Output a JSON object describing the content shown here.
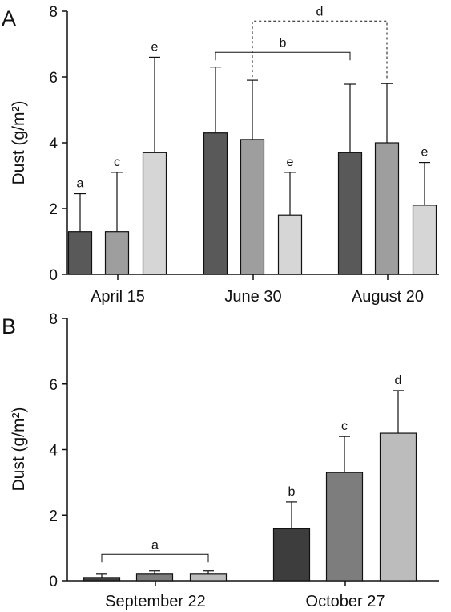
{
  "chart_data": [
    {
      "panel": "A",
      "type": "bar",
      "ylabel": "Dust (g/m²)",
      "ylim": [
        0,
        8
      ],
      "yticks": [
        0,
        2,
        4,
        6,
        8
      ],
      "categories": [
        "April 15",
        "June 30",
        "August 20"
      ],
      "colors": [
        "#595959",
        "#9e9e9e",
        "#d6d6d6"
      ],
      "values": [
        [
          1.3,
          1.3,
          3.7
        ],
        [
          4.3,
          4.1,
          1.8
        ],
        [
          3.7,
          4.0,
          2.1
        ]
      ],
      "errors": [
        [
          2.45,
          3.1,
          6.6
        ],
        [
          6.3,
          5.9,
          3.1
        ],
        [
          5.78,
          5.8,
          3.4
        ]
      ],
      "bar_labels": [
        [
          "a",
          "c",
          "e"
        ],
        [
          "",
          "",
          "e"
        ],
        [
          "",
          "",
          "e"
        ]
      ],
      "brackets": [
        {
          "label": "b",
          "from": [
            1,
            0
          ],
          "to": [
            2,
            0
          ],
          "level": 6.75,
          "style": "solid"
        },
        {
          "label": "d",
          "from": [
            1,
            1
          ],
          "to": [
            2,
            1
          ],
          "level": 7.7,
          "style": "dashed"
        }
      ]
    },
    {
      "panel": "B",
      "type": "bar",
      "ylabel": "Dust (g/m²)",
      "ylim": [
        0,
        8
      ],
      "yticks": [
        0,
        2,
        4,
        6,
        8
      ],
      "categories": [
        "September 22",
        "October 27"
      ],
      "colors": [
        "#3d3d3d",
        "#7d7d7d",
        "#bcbcbc"
      ],
      "values": [
        [
          0.1,
          0.2,
          0.2
        ],
        [
          1.6,
          3.3,
          4.5
        ]
      ],
      "errors": [
        [
          0.2,
          0.3,
          0.3
        ],
        [
          2.4,
          4.4,
          5.8
        ]
      ],
      "bar_labels": [
        [
          "",
          "",
          ""
        ],
        [
          "b",
          "c",
          "d"
        ]
      ],
      "brackets": [
        {
          "label": "a",
          "from": [
            0,
            0
          ],
          "to": [
            0,
            2
          ],
          "level": 0.8,
          "style": "solid"
        }
      ]
    }
  ]
}
